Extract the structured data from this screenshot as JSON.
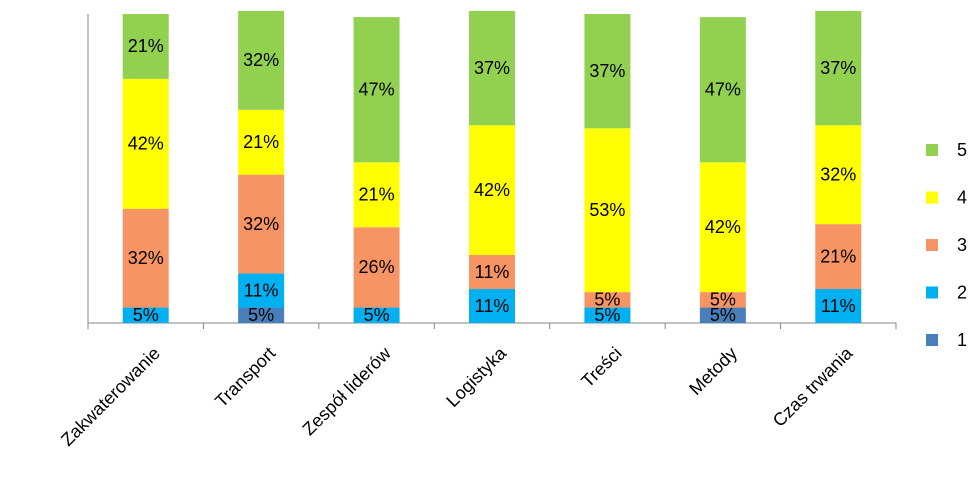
{
  "chart_data": {
    "type": "stacked_bar",
    "categories": [
      "Zakwaterowanie",
      "Transport",
      "Zespół liderów",
      "Logistyka",
      "Treści",
      "Metody",
      "Czas trwania"
    ],
    "ylim": [
      0,
      100
    ],
    "legend": "right",
    "series": [
      {
        "name": "1",
        "color": "#4a7ebb",
        "values": [
          null,
          5,
          null,
          null,
          null,
          5,
          null
        ],
        "value_labels": [
          null,
          "5%",
          null,
          null,
          null,
          "5%",
          null
        ]
      },
      {
        "name": "2",
        "color": "#00b0f0",
        "values": [
          5,
          11,
          5,
          11,
          5,
          null,
          11
        ],
        "value_labels": [
          "5%",
          "11%",
          "5%",
          "11%",
          "5%",
          null,
          "11%"
        ]
      },
      {
        "name": "3",
        "color": "#f79464",
        "values": [
          32,
          32,
          26,
          11,
          5,
          5,
          21
        ],
        "value_labels": [
          "32%",
          "32%",
          "26%",
          "11%",
          "5%",
          "5%",
          "21%"
        ]
      },
      {
        "name": "4",
        "color": "#ffff00",
        "values": [
          42,
          21,
          21,
          42,
          53,
          42,
          32
        ],
        "value_labels": [
          "42%",
          "21%",
          "21%",
          "42%",
          "53%",
          "42%",
          "32%"
        ]
      },
      {
        "name": "5",
        "color": "#92d050",
        "values": [
          21,
          32,
          47,
          37,
          37,
          47,
          37
        ],
        "value_labels": [
          "21%",
          "32%",
          "47%",
          "37%",
          "37%",
          "47%",
          "37%"
        ]
      }
    ]
  }
}
